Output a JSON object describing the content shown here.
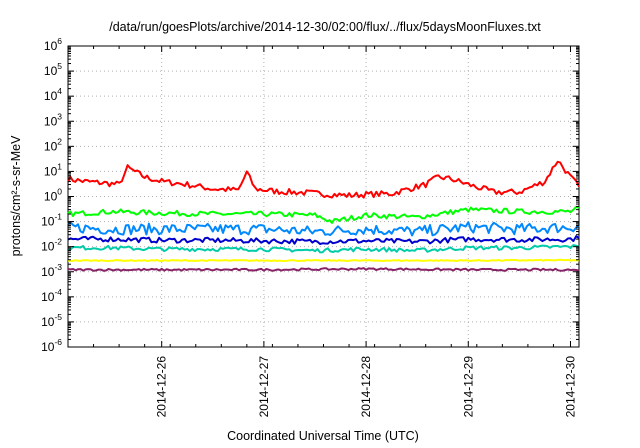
{
  "chart_data": {
    "type": "line",
    "title": "/data/run/goesPlots/archive/2014-12-30/02:00/flux/../flux/5daysMoonFluxes.txt",
    "xlabel": "Coordinated Universal Time (UTC)",
    "ylabel": "protons/cm²-s-sr-MeV",
    "yscale": "log",
    "ylim": [
      1e-06,
      1000000.0
    ],
    "y_ticks": [
      {
        "value": 1e-06,
        "base": "10",
        "exp": "-6"
      },
      {
        "value": 1e-05,
        "base": "10",
        "exp": "-5"
      },
      {
        "value": 0.0001,
        "base": "10",
        "exp": "-4"
      },
      {
        "value": 0.001,
        "base": "10",
        "exp": "-3"
      },
      {
        "value": 0.01,
        "base": "10",
        "exp": "-2"
      },
      {
        "value": 0.1,
        "base": "10",
        "exp": "-1"
      },
      {
        "value": 1,
        "base": "10",
        "exp": "0"
      },
      {
        "value": 10,
        "base": "10",
        "exp": "1"
      },
      {
        "value": 100,
        "base": "10",
        "exp": "2"
      },
      {
        "value": 1000,
        "base": "10",
        "exp": "3"
      },
      {
        "value": 10000,
        "base": "10",
        "exp": "4"
      },
      {
        "value": 100000,
        "base": "10",
        "exp": "5"
      },
      {
        "value": 1000000,
        "base": "10",
        "exp": "6"
      }
    ],
    "xlim": [
      "2014-12-25T02:00",
      "2014-12-30T02:00"
    ],
    "x_tick_labels": [
      "2014-12-26",
      "2014-12-27",
      "2014-12-28",
      "2014-12-29",
      "2014-12-30"
    ],
    "grid": true,
    "legend": "none",
    "series": [
      {
        "color": "#ff0000",
        "x": [
          "2014-12-25T02:00",
          "2014-12-25T06:00",
          "2014-12-25T10:00",
          "2014-12-25T14:00",
          "2014-12-25T16:00",
          "2014-12-25T20:00",
          "2014-12-26T00:00",
          "2014-12-26T06:00",
          "2014-12-26T12:00",
          "2014-12-26T18:00",
          "2014-12-26T20:00",
          "2014-12-26T22:00",
          "2014-12-27T03:00",
          "2014-12-27T10:00",
          "2014-12-27T16:00",
          "2014-12-27T20:00",
          "2014-12-28T00:00",
          "2014-12-28T06:00",
          "2014-12-28T10:00",
          "2014-12-28T14:00",
          "2014-12-28T17:00",
          "2014-12-28T20:00",
          "2014-12-29T00:00",
          "2014-12-29T06:00",
          "2014-12-29T12:00",
          "2014-12-29T18:00",
          "2014-12-29T21:00",
          "2014-12-30T00:00",
          "2014-12-30T02:00"
        ],
        "y": [
          5,
          4,
          3.5,
          3,
          14,
          6,
          4,
          3,
          2,
          1.8,
          9,
          2,
          1.6,
          1.4,
          1.2,
          1.1,
          1.2,
          1.3,
          2,
          3,
          6,
          5,
          3,
          1.5,
          1.5,
          4,
          28,
          6,
          2.5
        ]
      },
      {
        "color": "#00ff00",
        "x": [
          "2014-12-25T02:00",
          "2014-12-25T12:00",
          "2014-12-26T00:00",
          "2014-12-26T12:00",
          "2014-12-27T00:00",
          "2014-12-27T12:00",
          "2014-12-27T16:00",
          "2014-12-28T00:00",
          "2014-12-28T12:00",
          "2014-12-29T00:00",
          "2014-12-29T12:00",
          "2014-12-30T00:00",
          "2014-12-30T02:00"
        ],
        "y": [
          0.2,
          0.25,
          0.22,
          0.2,
          0.2,
          0.18,
          0.1,
          0.18,
          0.15,
          0.3,
          0.25,
          0.25,
          0.35
        ]
      },
      {
        "color": "#0088ff",
        "x": [
          "2014-12-25T02:00",
          "2014-12-25T12:00",
          "2014-12-26T00:00",
          "2014-12-26T12:00",
          "2014-12-27T00:00",
          "2014-12-27T12:00",
          "2014-12-28T00:00",
          "2014-12-28T12:00",
          "2014-12-29T00:00",
          "2014-12-29T12:00",
          "2014-12-30T00:00",
          "2014-12-30T02:00"
        ],
        "y": [
          0.06,
          0.05,
          0.05,
          0.05,
          0.05,
          0.04,
          0.05,
          0.04,
          0.06,
          0.05,
          0.06,
          0.07
        ]
      },
      {
        "color": "#0000cc",
        "x": [
          "2014-12-25T02:00",
          "2014-12-25T12:00",
          "2014-12-26T00:00",
          "2014-12-26T12:00",
          "2014-12-27T00:00",
          "2014-12-27T12:00",
          "2014-12-28T00:00",
          "2014-12-28T12:00",
          "2014-12-29T00:00",
          "2014-12-29T12:00",
          "2014-12-30T00:00",
          "2014-12-30T02:00"
        ],
        "y": [
          0.02,
          0.02,
          0.018,
          0.018,
          0.017,
          0.016,
          0.017,
          0.016,
          0.02,
          0.019,
          0.02,
          0.022
        ]
      },
      {
        "color": "#00ccaa",
        "x": [
          "2014-12-25T02:00",
          "2014-12-25T12:00",
          "2014-12-26T00:00",
          "2014-12-26T12:00",
          "2014-12-27T00:00",
          "2014-12-27T12:00",
          "2014-12-28T00:00",
          "2014-12-28T12:00",
          "2014-12-29T00:00",
          "2014-12-29T12:00",
          "2014-12-30T00:00",
          "2014-12-30T02:00"
        ],
        "y": [
          0.009,
          0.009,
          0.008,
          0.008,
          0.008,
          0.007,
          0.008,
          0.007,
          0.009,
          0.009,
          0.01,
          0.01
        ]
      },
      {
        "color": "#ffff00",
        "x": [
          "2014-12-25T02:00",
          "2014-12-26T00:00",
          "2014-12-27T00:00",
          "2014-12-28T00:00",
          "2014-12-29T00:00",
          "2014-12-30T00:00",
          "2014-12-30T02:00"
        ],
        "y": [
          0.0028,
          0.0028,
          0.0028,
          0.0028,
          0.0028,
          0.0029,
          0.0029
        ]
      },
      {
        "color": "#882266",
        "x": [
          "2014-12-25T02:00",
          "2014-12-26T00:00",
          "2014-12-27T00:00",
          "2014-12-28T00:00",
          "2014-12-29T00:00",
          "2014-12-30T00:00",
          "2014-12-30T02:00"
        ],
        "y": [
          0.0012,
          0.0012,
          0.0012,
          0.0013,
          0.0012,
          0.0012,
          0.0011
        ]
      }
    ]
  }
}
